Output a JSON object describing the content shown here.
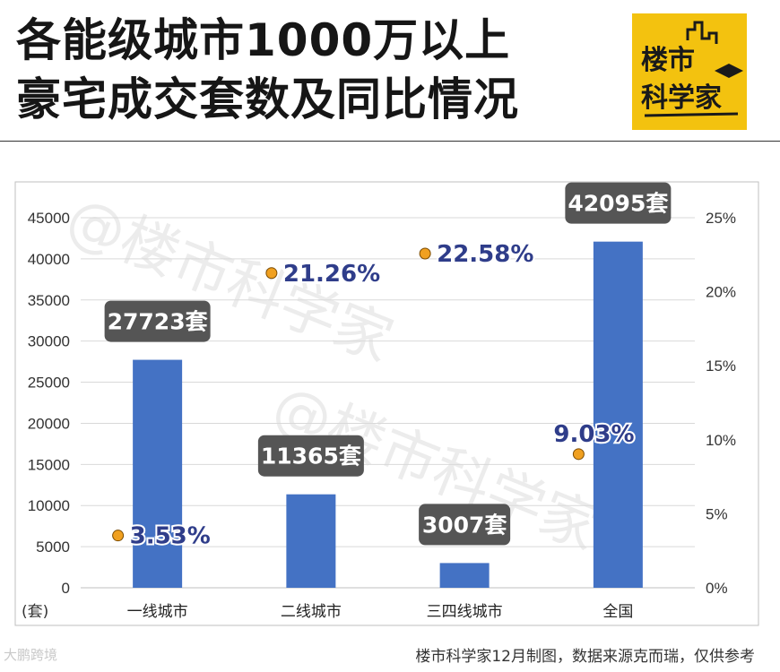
{
  "header": {
    "title_line1": "各能级城市1000万以上",
    "title_line2": "豪宅成交套数及同比情况"
  },
  "logo": {
    "line1": "楼市",
    "line2": "科学家",
    "bg_color": "#f3c20f"
  },
  "watermark": {
    "main": "@楼市科学家",
    "corner": "大鹏跨境"
  },
  "footer": {
    "source": "楼市科学家12月制图，数据来源克而瑞，仅供参考"
  },
  "chart_data": {
    "type": "bar",
    "categories": [
      "一线城市",
      "二线城市",
      "三四线城市",
      "全国"
    ],
    "series": [
      {
        "name": "成交套数",
        "axis": "left",
        "values": [
          27723,
          11365,
          3007,
          42095
        ],
        "labels": [
          "27723套",
          "11365套",
          "3007套",
          "42095套"
        ],
        "color": "#4472c4"
      },
      {
        "name": "同比",
        "axis": "right",
        "type": "scatter",
        "values": [
          3.53,
          21.26,
          22.58,
          9.03
        ],
        "labels": [
          "3.53%",
          "21.26%",
          "22.58%",
          "9.03%"
        ],
        "color": "#f0a020"
      }
    ],
    "y_left": {
      "unit_label": "(套)",
      "ylim": [
        0,
        45000
      ],
      "ticks": [
        "0",
        "5000",
        "10000",
        "15000",
        "20000",
        "25000",
        "30000",
        "35000",
        "40000",
        "45000"
      ]
    },
    "y_right": {
      "ylim": [
        0,
        25
      ],
      "ticks": [
        "0%",
        "5%",
        "10%",
        "15%",
        "20%",
        "25%"
      ]
    },
    "grid": true,
    "bar_label_bg": "#555555"
  }
}
